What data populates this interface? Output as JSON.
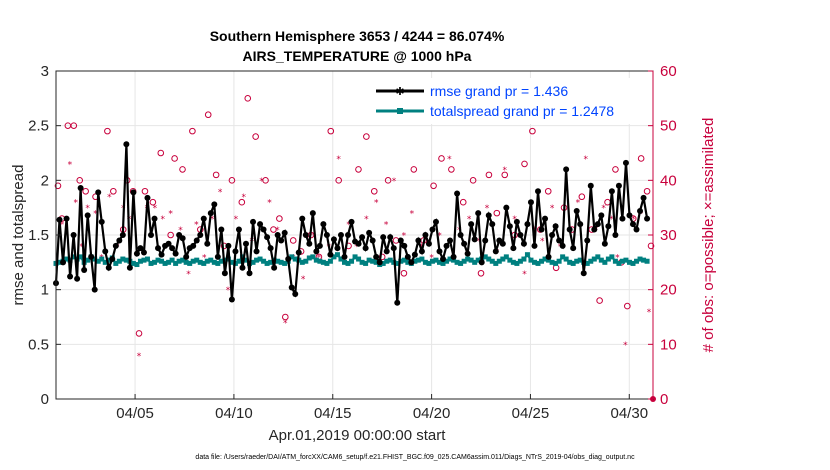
{
  "chart_data": {
    "type": "line",
    "title": "Southern Hemisphere 3653 / 4244 = 86.074%",
    "subtitle": "AIRS_TEMPERATURE @ 1000 hPa",
    "xlabel": "Apr.01,2019 00:00:00 start",
    "ylabel": "rmse and totalspread",
    "ylabel_right": "# of obs: o=possible; ×=assimilated",
    "footnote": "data file: /Users/raeder/DAI/ATM_forcXX/CAM6_setup/f.e21.FHIST_BGC.f09_025.CAM6assim.011/Diags_NTrS_2019-04/obs_diag_output.nc",
    "xlim": [
      1,
      31.2
    ],
    "ylim": [
      0,
      3
    ],
    "ylim_right": [
      0,
      60
    ],
    "x_ticks": [
      5,
      10,
      15,
      20,
      25,
      30
    ],
    "x_tick_labels": [
      "04/05",
      "04/10",
      "04/15",
      "04/20",
      "04/25",
      "04/30"
    ],
    "y_ticks": [
      "0",
      "0.5",
      "1",
      "1.5",
      "2",
      "2.5",
      "3"
    ],
    "y_ticks_right": [
      "0",
      "10",
      "20",
      "30",
      "40",
      "50",
      "60"
    ],
    "grid": true,
    "legend_position": "top-right",
    "colors": {
      "rmse": "#000000",
      "spread": "#008080",
      "obs": "#c8003c",
      "legend_text": "#0044ff"
    },
    "series": [
      {
        "name": "rmse grand pr = 1.436",
        "values": [
          1.06,
          1.64,
          1.25,
          1.65,
          1.12,
          1.5,
          1.1,
          1.93,
          1.18,
          1.68,
          1.3,
          1.0,
          1.89,
          1.62,
          1.35,
          1.2,
          1.28,
          1.4,
          1.45,
          1.5,
          2.33,
          1.2,
          1.89,
          1.33,
          1.38,
          1.34,
          1.84,
          1.5,
          1.65,
          1.38,
          1.32,
          1.4,
          1.42,
          1.38,
          1.33,
          1.5,
          1.47,
          1.3,
          1.38,
          1.4,
          1.45,
          1.5,
          1.65,
          1.42,
          1.7,
          1.78,
          1.3,
          1.55,
          1.15,
          1.4,
          0.91,
          1.35,
          1.55,
          1.2,
          1.42,
          1.15,
          1.62,
          1.35,
          1.6,
          1.55,
          1.48,
          1.38,
          1.2,
          1.5,
          1.45,
          1.52,
          1.28,
          1.02,
          0.96,
          1.34,
          1.65,
          1.5,
          1.42,
          1.7,
          1.35,
          1.4,
          1.6,
          1.5,
          1.32,
          1.46,
          1.38,
          1.5,
          1.3,
          1.5,
          1.62,
          1.44,
          1.42,
          1.48,
          1.38,
          1.52,
          1.45,
          1.3,
          1.25,
          1.48,
          1.35,
          1.48,
          1.38,
          0.88,
          1.45,
          1.4,
          1.3,
          1.25,
          1.32,
          1.45,
          1.35,
          1.5,
          1.42,
          1.55,
          1.62,
          1.35,
          1.28,
          1.4,
          1.45,
          1.3,
          1.88,
          1.5,
          1.42,
          1.33,
          1.6,
          1.46,
          1.7,
          1.25,
          1.45,
          1.68,
          1.6,
          1.35,
          1.45,
          1.42,
          1.75,
          1.58,
          1.38,
          1.62,
          1.5,
          1.42,
          1.6,
          1.8,
          1.4,
          1.9,
          1.55,
          1.65,
          1.3,
          1.5,
          1.58,
          1.45,
          1.4,
          2.1,
          1.55,
          1.38,
          1.72,
          1.6,
          1.15,
          1.45,
          1.95,
          1.55,
          1.6,
          1.68,
          1.42,
          1.58,
          1.9,
          1.5,
          1.95,
          1.65,
          2.16,
          1.68,
          1.6,
          1.55,
          1.72,
          1.84,
          1.65
        ]
      },
      {
        "name": "totalspread grand pr = 1.2478",
        "values": [
          1.24,
          1.25,
          1.26,
          1.28,
          1.27,
          1.3,
          1.28,
          1.3,
          1.25,
          1.27,
          1.3,
          1.28,
          1.26,
          1.28,
          1.25,
          1.27,
          1.29,
          1.24,
          1.26,
          1.28,
          1.27,
          1.26,
          1.24,
          1.23,
          1.26,
          1.27,
          1.28,
          1.24,
          1.25,
          1.27,
          1.26,
          1.24,
          1.25,
          1.27,
          1.24,
          1.26,
          1.27,
          1.25,
          1.24,
          1.26,
          1.27,
          1.25,
          1.24,
          1.26,
          1.27,
          1.25,
          1.24,
          1.26,
          1.27,
          1.28,
          1.25,
          1.24,
          1.26,
          1.3,
          1.27,
          1.24,
          1.25,
          1.27,
          1.28,
          1.26,
          1.24,
          1.25,
          1.27,
          1.26,
          1.25,
          1.24,
          1.26,
          1.3,
          1.28,
          1.27,
          1.25,
          1.26,
          1.29,
          1.3,
          1.27,
          1.26,
          1.25,
          1.24,
          1.26,
          1.3,
          1.32,
          1.28,
          1.25,
          1.24,
          1.26,
          1.3,
          1.28,
          1.25,
          1.24,
          1.27,
          1.26,
          1.25,
          1.23,
          1.24,
          1.26,
          1.27,
          1.25,
          1.24,
          1.26,
          1.27,
          1.25,
          1.24,
          1.26,
          1.27,
          1.28,
          1.25,
          1.24,
          1.26,
          1.27,
          1.25,
          1.24,
          1.26,
          1.28,
          1.27,
          1.25,
          1.24,
          1.26,
          1.28,
          1.27,
          1.25,
          1.27,
          1.28,
          1.3,
          1.28,
          1.26,
          1.24,
          1.26,
          1.28,
          1.3,
          1.27,
          1.25,
          1.24,
          1.26,
          1.28,
          1.32,
          1.27,
          1.25,
          1.24,
          1.26,
          1.28,
          1.27,
          1.25,
          1.24,
          1.26,
          1.3,
          1.28,
          1.25,
          1.24,
          1.26,
          1.27,
          1.25,
          1.24,
          1.26,
          1.28,
          1.3,
          1.27,
          1.25,
          1.28,
          1.3,
          1.26,
          1.24,
          1.26,
          1.27,
          1.25,
          1.24,
          1.26,
          1.28,
          1.27,
          1.26
        ]
      }
    ],
    "obs_possible": [
      [
        1.1,
        39
      ],
      [
        1.3,
        33
      ],
      [
        1.6,
        50
      ],
      [
        1.9,
        50
      ],
      [
        2.2,
        40
      ],
      [
        2.5,
        38
      ],
      [
        3.0,
        37
      ],
      [
        3.6,
        49
      ],
      [
        3.9,
        38
      ],
      [
        4.4,
        31
      ],
      [
        4.6,
        40
      ],
      [
        4.9,
        38
      ],
      [
        5.2,
        12
      ],
      [
        5.5,
        38
      ],
      [
        5.9,
        36
      ],
      [
        6.3,
        45
      ],
      [
        6.8,
        30
      ],
      [
        7.0,
        44
      ],
      [
        7.4,
        42
      ],
      [
        7.9,
        49
      ],
      [
        8.3,
        31
      ],
      [
        8.7,
        52
      ],
      [
        9.1,
        41
      ],
      [
        9.5,
        28
      ],
      [
        9.9,
        40
      ],
      [
        10.4,
        36
      ],
      [
        10.7,
        55
      ],
      [
        11.1,
        48
      ],
      [
        11.6,
        40
      ],
      [
        12.0,
        31
      ],
      [
        12.3,
        33
      ],
      [
        12.6,
        15
      ],
      [
        13.0,
        29
      ],
      [
        13.4,
        27
      ],
      [
        13.9,
        30
      ],
      [
        14.3,
        26
      ],
      [
        14.9,
        49
      ],
      [
        15.3,
        40
      ],
      [
        15.8,
        28
      ],
      [
        16.3,
        42
      ],
      [
        16.7,
        48
      ],
      [
        17.1,
        38
      ],
      [
        17.5,
        26
      ],
      [
        17.8,
        40
      ],
      [
        18.2,
        29
      ],
      [
        18.6,
        23
      ],
      [
        19.1,
        42
      ],
      [
        19.6,
        29
      ],
      [
        20.1,
        39
      ],
      [
        20.5,
        44
      ],
      [
        21.0,
        42
      ],
      [
        21.6,
        36
      ],
      [
        22.1,
        40
      ],
      [
        22.5,
        23
      ],
      [
        22.9,
        41
      ],
      [
        23.3,
        34
      ],
      [
        23.7,
        41
      ],
      [
        24.2,
        30
      ],
      [
        24.7,
        43
      ],
      [
        25.1,
        49
      ],
      [
        25.5,
        31
      ],
      [
        25.9,
        38
      ],
      [
        26.3,
        24
      ],
      [
        26.7,
        35
      ],
      [
        27.1,
        31
      ],
      [
        27.6,
        37
      ],
      [
        28.1,
        31
      ],
      [
        28.5,
        18
      ],
      [
        28.9,
        36
      ],
      [
        29.3,
        42
      ],
      [
        29.6,
        25
      ],
      [
        29.9,
        17
      ],
      [
        30.2,
        33
      ],
      [
        30.6,
        44
      ],
      [
        30.9,
        38
      ],
      [
        31.1,
        28
      ]
    ],
    "obs_assimilated": [
      [
        1.3,
        32
      ],
      [
        1.7,
        43
      ],
      [
        2.0,
        36
      ],
      [
        2.3,
        28
      ],
      [
        2.6,
        35
      ],
      [
        3.0,
        34
      ],
      [
        3.3,
        26
      ],
      [
        3.7,
        37
      ],
      [
        4.1,
        28
      ],
      [
        4.4,
        35
      ],
      [
        4.7,
        33
      ],
      [
        5.2,
        8
      ],
      [
        5.6,
        35
      ],
      [
        6.0,
        35
      ],
      [
        6.4,
        33
      ],
      [
        6.8,
        34
      ],
      [
        7.3,
        31
      ],
      [
        7.7,
        23
      ],
      [
        8.1,
        32
      ],
      [
        8.5,
        26
      ],
      [
        8.9,
        33
      ],
      [
        9.3,
        38
      ],
      [
        9.7,
        20
      ],
      [
        10.1,
        33
      ],
      [
        10.5,
        37
      ],
      [
        10.9,
        29
      ],
      [
        11.4,
        40
      ],
      [
        11.8,
        36
      ],
      [
        12.2,
        31
      ],
      [
        12.6,
        14
      ],
      [
        13.0,
        26
      ],
      [
        13.5,
        22
      ],
      [
        13.9,
        30
      ],
      [
        14.3,
        26
      ],
      [
        14.8,
        28
      ],
      [
        15.3,
        44
      ],
      [
        15.8,
        32
      ],
      [
        16.2,
        28
      ],
      [
        16.7,
        33
      ],
      [
        17.2,
        36
      ],
      [
        17.7,
        32
      ],
      [
        18.1,
        40
      ],
      [
        18.6,
        30
      ],
      [
        19.0,
        34
      ],
      [
        19.5,
        28
      ],
      [
        20.0,
        26
      ],
      [
        20.4,
        30
      ],
      [
        20.9,
        44
      ],
      [
        21.4,
        31
      ],
      [
        21.9,
        33
      ],
      [
        22.4,
        29
      ],
      [
        22.8,
        35
      ],
      [
        23.3,
        27
      ],
      [
        23.7,
        42
      ],
      [
        24.2,
        33
      ],
      [
        24.7,
        23
      ],
      [
        25.2,
        31
      ],
      [
        25.6,
        29
      ],
      [
        26.1,
        35
      ],
      [
        26.5,
        28
      ],
      [
        27.0,
        31
      ],
      [
        27.4,
        36
      ],
      [
        27.8,
        44
      ],
      [
        28.3,
        31
      ],
      [
        28.7,
        35
      ],
      [
        29.1,
        33
      ],
      [
        29.4,
        26
      ],
      [
        29.8,
        10
      ],
      [
        30.2,
        33
      ],
      [
        30.6,
        34
      ],
      [
        31.0,
        16
      ]
    ]
  }
}
